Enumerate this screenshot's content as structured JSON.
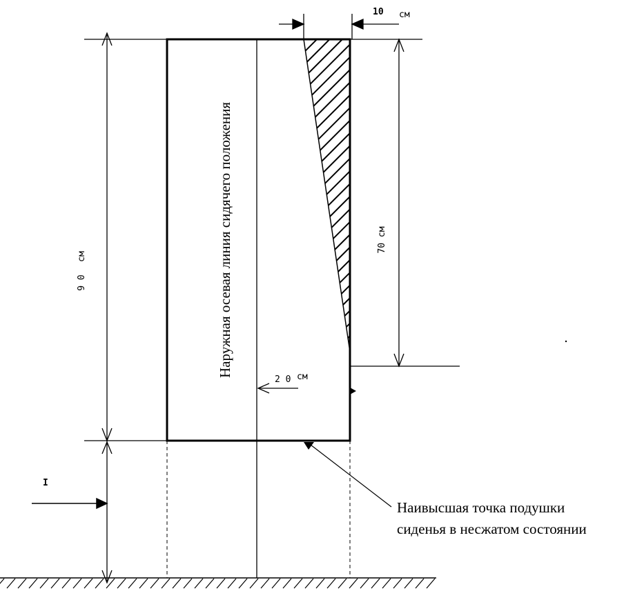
{
  "labels": {
    "top_width": "10",
    "top_width_unit": "см",
    "left_height": "9 0",
    "left_height_unit": "см",
    "right_height": "70 см",
    "center_offset": "2 0",
    "center_offset_unit": "см",
    "arrow_marker": "I",
    "centerline_text": "Наружная осевая линия сидячего положения",
    "note_line1": "Наивысшая точка подушки",
    "note_line2": "сиденья в несжатом состоянии"
  }
}
